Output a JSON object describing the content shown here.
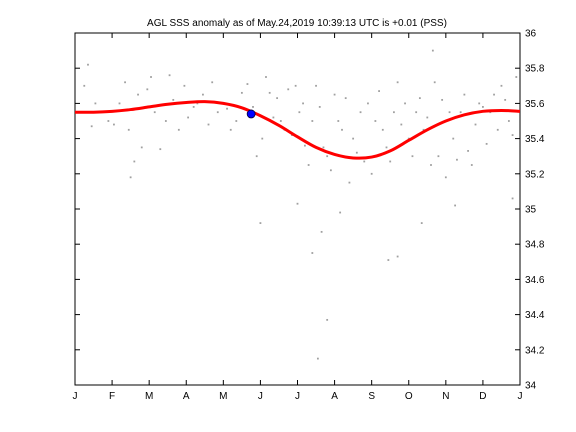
{
  "chart_data": {
    "type": "line",
    "title": "AGL SSS anomaly as of May.24,2019 10:39:13 UTC is +0.01 (PSS)",
    "xlabel": "",
    "ylabel": "",
    "x_tick_labels": [
      "J",
      "F",
      "M",
      "A",
      "M",
      "J",
      "J",
      "A",
      "S",
      "O",
      "N",
      "D",
      "J"
    ],
    "x_ticks_month_index": [
      0,
      1,
      2,
      3,
      4,
      5,
      6,
      7,
      8,
      9,
      10,
      11,
      12
    ],
    "xlim_month_index": [
      0,
      12
    ],
    "y_tick_labels": [
      "34",
      "34.2",
      "34.4",
      "34.6",
      "34.8",
      "35",
      "35.2",
      "35.4",
      "35.6",
      "35.8",
      "36"
    ],
    "y_ticks": [
      34,
      34.2,
      34.4,
      34.6,
      34.8,
      35,
      35.2,
      35.4,
      35.6,
      35.8,
      36
    ],
    "ylim": [
      34,
      36
    ],
    "y_axis_side": "right",
    "grid": false,
    "legend": "none",
    "colors": {
      "climatology": "#ff0000",
      "current": "#0000ff",
      "observations": "#a0a0a0"
    },
    "series": [
      {
        "role": "climatology",
        "style": "thick-line",
        "x": [
          0,
          0.5,
          1,
          1.5,
          2,
          2.5,
          3,
          3.5,
          4,
          4.5,
          5,
          5.5,
          6,
          6.5,
          7,
          7.5,
          8,
          8.5,
          9,
          9.5,
          10,
          10.5,
          11,
          11.5,
          12
        ],
        "y": [
          35.55,
          35.55,
          35.555,
          35.565,
          35.58,
          35.595,
          35.605,
          35.61,
          35.6,
          35.575,
          35.53,
          35.475,
          35.41,
          35.35,
          35.31,
          35.29,
          35.295,
          35.33,
          35.39,
          35.45,
          35.5,
          35.535,
          35.555,
          35.56,
          35.555
        ]
      },
      {
        "role": "current",
        "style": "dot",
        "x": [
          4.75
        ],
        "y": [
          35.54
        ]
      },
      {
        "role": "observations",
        "style": "small-dots",
        "x": [
          0.25,
          0.35,
          0.45,
          0.55,
          0.7,
          0.9,
          1.05,
          1.2,
          1.35,
          1.45,
          1.5,
          1.6,
          1.7,
          1.8,
          1.95,
          2.05,
          2.15,
          2.3,
          2.45,
          2.55,
          2.65,
          2.8,
          2.95,
          3.05,
          3.2,
          3.3,
          3.45,
          3.6,
          3.7,
          3.85,
          4.0,
          4.1,
          4.2,
          4.35,
          4.5,
          4.65,
          4.8,
          4.9,
          5.05,
          5.15,
          5.25,
          5.35,
          5.45,
          5.55,
          5.65,
          5.75,
          5.85,
          5.95,
          6.05,
          6.15,
          6.2,
          6.3,
          6.4,
          6.5,
          6.6,
          6.7,
          6.8,
          6.9,
          7.0,
          7.1,
          7.2,
          7.3,
          7.4,
          7.5,
          7.6,
          7.7,
          7.8,
          7.9,
          8.0,
          8.1,
          8.2,
          8.3,
          8.4,
          8.5,
          8.6,
          8.7,
          8.8,
          8.9,
          9.0,
          9.1,
          9.2,
          9.3,
          9.4,
          9.5,
          9.6,
          9.7,
          9.8,
          9.9,
          10.0,
          10.1,
          10.2,
          10.3,
          10.4,
          10.5,
          10.6,
          10.7,
          10.8,
          10.9,
          11.0,
          11.1,
          11.2,
          11.3,
          11.4,
          11.5,
          11.6,
          11.7,
          11.8,
          11.9,
          5.0,
          6.0,
          6.4,
          6.55,
          6.65,
          6.8,
          7.15,
          8.45,
          8.7,
          9.35,
          9.65,
          10.25,
          11.8
        ],
        "y": [
          35.7,
          35.82,
          35.47,
          35.6,
          35.55,
          35.5,
          35.48,
          35.6,
          35.72,
          35.45,
          35.18,
          35.27,
          35.65,
          35.35,
          35.68,
          35.75,
          35.55,
          35.34,
          35.5,
          35.76,
          35.62,
          35.45,
          35.7,
          35.52,
          35.58,
          35.6,
          35.65,
          35.48,
          35.72,
          35.55,
          35.6,
          35.57,
          35.45,
          35.5,
          35.66,
          35.71,
          35.58,
          35.3,
          35.4,
          35.75,
          35.66,
          35.52,
          35.63,
          35.5,
          35.45,
          35.68,
          35.42,
          35.7,
          35.55,
          35.6,
          35.36,
          35.25,
          35.5,
          35.7,
          35.58,
          35.35,
          35.3,
          35.22,
          35.65,
          35.5,
          35.45,
          35.63,
          35.15,
          35.4,
          35.32,
          35.55,
          35.27,
          35.6,
          35.2,
          35.5,
          35.67,
          35.45,
          35.35,
          35.27,
          35.55,
          35.72,
          35.48,
          35.6,
          35.4,
          35.3,
          35.55,
          35.63,
          35.45,
          35.52,
          35.25,
          35.72,
          35.3,
          35.62,
          35.18,
          35.55,
          35.4,
          35.28,
          35.55,
          35.65,
          35.33,
          35.25,
          35.48,
          35.6,
          35.58,
          35.37,
          35.55,
          35.65,
          35.45,
          35.7,
          35.62,
          35.5,
          35.42,
          35.75,
          34.92,
          35.03,
          34.75,
          34.15,
          34.87,
          34.37,
          34.98,
          34.71,
          34.73,
          34.92,
          35.9,
          35.02,
          35.06
        ]
      }
    ]
  }
}
